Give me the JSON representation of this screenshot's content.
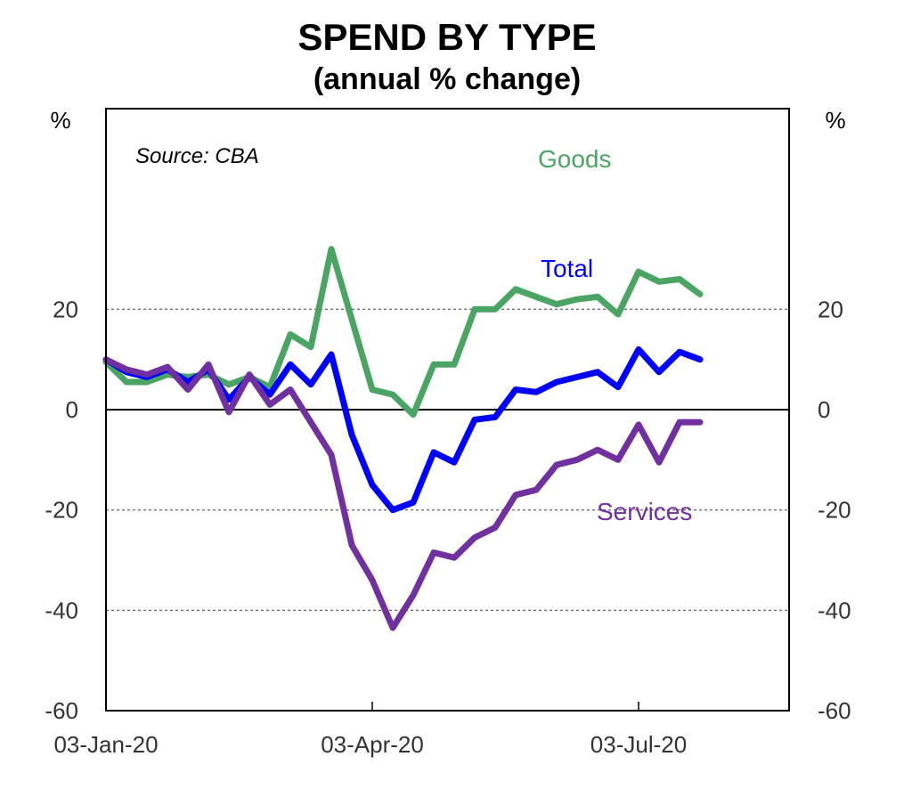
{
  "chart_data": {
    "type": "line",
    "title": "SPEND BY TYPE",
    "subtitle": "(annual % change)",
    "ylabel_left": "%",
    "ylabel_right": "%",
    "source": "Source: CBA",
    "ylim": [
      -60,
      60
    ],
    "yticks": [
      20,
      0,
      -20,
      -40,
      -60
    ],
    "xlim": [
      0,
      33
    ],
    "xtick_labels": [
      {
        "x": 0,
        "label": "03-Jan-20"
      },
      {
        "x": 13,
        "label": "03-Apr-20"
      },
      {
        "x": 26,
        "label": "03-Jul-20"
      }
    ],
    "grid": "dashed horizontal",
    "x": [
      0,
      1,
      2,
      3,
      4,
      5,
      6,
      7,
      8,
      9,
      10,
      11,
      12,
      13,
      14,
      15,
      16,
      17,
      18,
      19,
      20,
      21,
      22,
      23,
      24,
      25,
      26,
      27,
      28,
      29
    ],
    "series": [
      {
        "name": "Goods",
        "color": "#4aa564",
        "values": [
          9.5,
          5.5,
          5.5,
          7,
          6.5,
          7,
          5,
          6.5,
          4.5,
          15,
          12.5,
          32,
          18,
          4,
          3,
          -1,
          9,
          9,
          20,
          20,
          24,
          22.5,
          21,
          22,
          22.5,
          19,
          27.5,
          25.5,
          26,
          23
        ]
      },
      {
        "name": "Total",
        "color": "#0000ff",
        "values": [
          10,
          7.5,
          6.5,
          8,
          5.5,
          8,
          2,
          6.5,
          3,
          9,
          5,
          11,
          -5,
          -15,
          -20,
          -18.5,
          -8.5,
          -10.5,
          -2,
          -1.5,
          4,
          3.5,
          5.5,
          6.5,
          7.5,
          4.5,
          12,
          7.5,
          11.5,
          10
        ]
      },
      {
        "name": "Services",
        "color": "#7030a0",
        "values": [
          10,
          8,
          7,
          8.5,
          4,
          9,
          -0.5,
          7,
          1,
          4,
          -2.5,
          -9,
          -27,
          -34,
          -43.5,
          -37,
          -28.5,
          -29.5,
          -25.5,
          -23.5,
          -17,
          -16,
          -11,
          -10,
          -8,
          -10,
          -3,
          -10.5,
          -2.5,
          -2.5
        ]
      }
    ]
  }
}
